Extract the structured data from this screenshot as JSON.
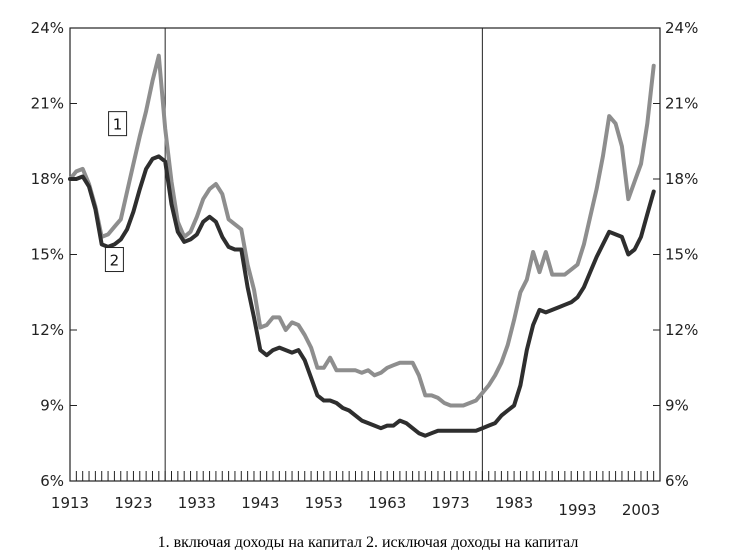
{
  "chart_data": {
    "type": "line",
    "title": "",
    "xlabel": "",
    "ylabel": "",
    "xlim": [
      1913,
      2006
    ],
    "ylim": [
      6,
      24
    ],
    "x_ticks": [
      1913,
      1923,
      1933,
      1943,
      1953,
      1963,
      1973,
      1983,
      1993,
      2003
    ],
    "y_ticks": [
      6,
      9,
      12,
      15,
      18,
      21,
      24
    ],
    "y_tick_format": "{v}%",
    "vertical_markers": [
      1928,
      1978
    ],
    "grid": false,
    "caption": "1. включая доходы на капитал 2. исключая доходы на капитал",
    "series": [
      {
        "name": "1",
        "color": "#8e8e8e",
        "label_box_at": [
          1920.5,
          20.2
        ],
        "x": [
          1913,
          1914,
          1915,
          1916,
          1917,
          1918,
          1919,
          1920,
          1921,
          1922,
          1923,
          1924,
          1925,
          1926,
          1927,
          1928,
          1929,
          1930,
          1931,
          1932,
          1933,
          1934,
          1935,
          1936,
          1937,
          1938,
          1939,
          1940,
          1941,
          1942,
          1943,
          1944,
          1945,
          1946,
          1947,
          1948,
          1949,
          1950,
          1951,
          1952,
          1953,
          1954,
          1955,
          1956,
          1957,
          1958,
          1959,
          1960,
          1961,
          1962,
          1963,
          1964,
          1965,
          1966,
          1967,
          1968,
          1969,
          1970,
          1971,
          1972,
          1973,
          1974,
          1975,
          1976,
          1977,
          1978,
          1979,
          1980,
          1981,
          1982,
          1983,
          1984,
          1985,
          1986,
          1987,
          1988,
          1989,
          1990,
          1991,
          1992,
          1993,
          1994,
          1995,
          1996,
          1997,
          1998,
          1999,
          2000,
          2001,
          2002,
          2003,
          2004,
          2005
        ],
        "values": [
          18.0,
          18.3,
          18.4,
          17.8,
          16.9,
          15.7,
          15.8,
          16.1,
          16.4,
          17.5,
          18.6,
          19.7,
          20.7,
          21.9,
          22.9,
          20.0,
          17.9,
          16.3,
          15.7,
          15.9,
          16.5,
          17.2,
          17.6,
          17.8,
          17.4,
          16.4,
          16.2,
          16.0,
          14.6,
          13.6,
          12.1,
          12.2,
          12.5,
          12.5,
          12.0,
          12.3,
          12.2,
          11.8,
          11.3,
          10.5,
          10.5,
          10.9,
          10.4,
          10.4,
          10.4,
          10.4,
          10.3,
          10.4,
          10.2,
          10.3,
          10.5,
          10.6,
          10.7,
          10.7,
          10.7,
          10.2,
          9.4,
          9.4,
          9.3,
          9.1,
          9.0,
          9.0,
          9.0,
          9.1,
          9.2,
          9.5,
          9.8,
          10.2,
          10.7,
          11.4,
          12.4,
          13.5,
          14.0,
          15.1,
          14.3,
          15.1,
          14.2,
          14.2,
          14.2,
          14.4,
          14.6,
          15.4,
          16.5,
          17.6,
          18.9,
          20.5,
          20.2,
          19.3,
          17.2,
          17.9,
          18.6,
          20.2,
          22.5
        ]
      },
      {
        "name": "2",
        "color": "#2e2e2e",
        "label_box_at": [
          1920.0,
          14.8
        ],
        "x": [
          1913,
          1914,
          1915,
          1916,
          1917,
          1918,
          1919,
          1920,
          1921,
          1922,
          1923,
          1924,
          1925,
          1926,
          1927,
          1928,
          1929,
          1930,
          1931,
          1932,
          1933,
          1934,
          1935,
          1936,
          1937,
          1938,
          1939,
          1940,
          1941,
          1942,
          1943,
          1944,
          1945,
          1946,
          1947,
          1948,
          1949,
          1950,
          1951,
          1952,
          1953,
          1954,
          1955,
          1956,
          1957,
          1958,
          1959,
          1960,
          1961,
          1962,
          1963,
          1964,
          1965,
          1966,
          1967,
          1968,
          1969,
          1970,
          1971,
          1972,
          1973,
          1974,
          1975,
          1976,
          1977,
          1978,
          1979,
          1980,
          1981,
          1982,
          1983,
          1984,
          1985,
          1986,
          1987,
          1988,
          1989,
          1990,
          1991,
          1992,
          1993,
          1994,
          1995,
          1996,
          1997,
          1998,
          1999,
          2000,
          2001,
          2002,
          2003,
          2004,
          2005
        ],
        "values": [
          18.0,
          18.0,
          18.1,
          17.7,
          16.8,
          15.4,
          15.3,
          15.4,
          15.6,
          16.0,
          16.7,
          17.6,
          18.4,
          18.8,
          18.9,
          18.7,
          17.0,
          15.9,
          15.5,
          15.6,
          15.8,
          16.3,
          16.5,
          16.3,
          15.7,
          15.3,
          15.2,
          15.2,
          13.7,
          12.5,
          11.2,
          11.0,
          11.2,
          11.3,
          11.2,
          11.1,
          11.2,
          10.8,
          10.1,
          9.4,
          9.2,
          9.2,
          9.1,
          8.9,
          8.8,
          8.6,
          8.4,
          8.3,
          8.2,
          8.1,
          8.2,
          8.2,
          8.4,
          8.3,
          8.1,
          7.9,
          7.8,
          7.9,
          8.0,
          8.0,
          8.0,
          8.0,
          8.0,
          8.0,
          8.0,
          8.1,
          8.2,
          8.3,
          8.6,
          8.8,
          9.0,
          9.8,
          11.2,
          12.2,
          12.8,
          12.7,
          12.8,
          12.9,
          13.0,
          13.1,
          13.3,
          13.7,
          14.3,
          14.9,
          15.4,
          15.9,
          15.8,
          15.7,
          15.0,
          15.2,
          15.7,
          16.6,
          17.5
        ]
      }
    ]
  }
}
